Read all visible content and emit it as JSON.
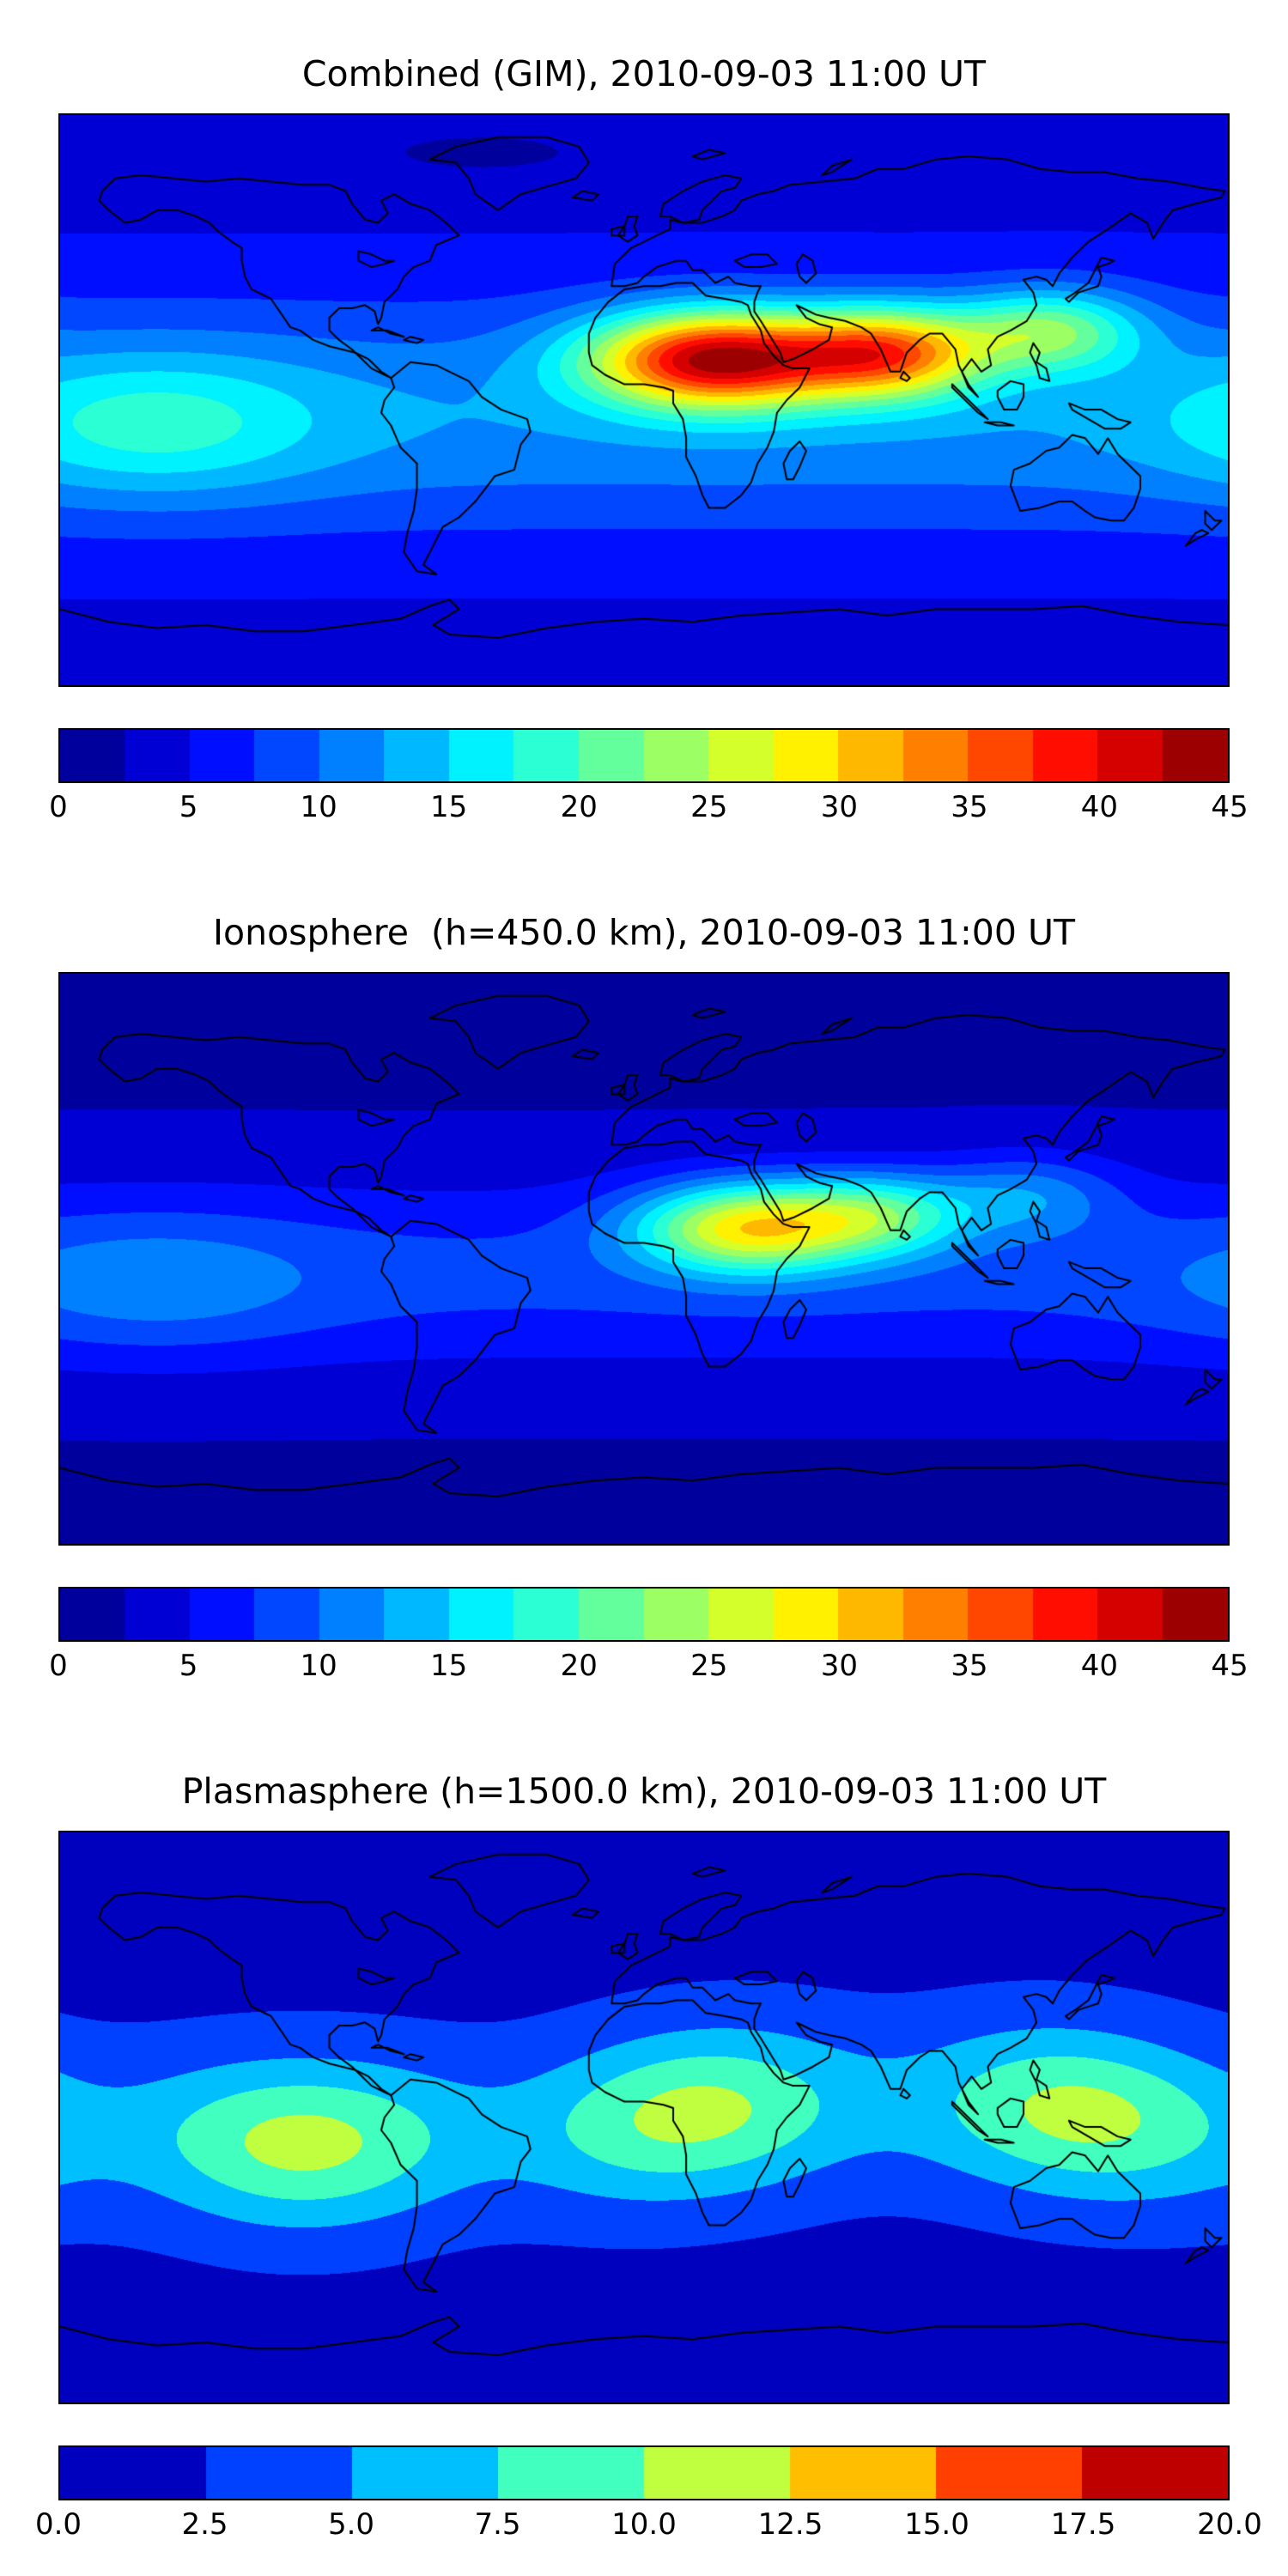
{
  "figure": {
    "background": "#ffffff",
    "coastline_color": "#000000"
  },
  "chart_data": [
    {
      "type": "heatmap",
      "title": "Combined (GIM), 2010-09-03 11:00 UT",
      "projection": "equirectangular",
      "lon_range": [
        -180,
        180
      ],
      "lat_range": [
        -90,
        90
      ],
      "grid": false,
      "colormap": "jet",
      "colorbar": {
        "min": 0,
        "max": 45,
        "step": 2.5,
        "n_segments": 18,
        "orientation": "horizontal",
        "tick_values": [
          0,
          5,
          10,
          15,
          20,
          25,
          30,
          35,
          40,
          45
        ],
        "tick_labels": [
          "0",
          "5",
          "10",
          "15",
          "20",
          "25",
          "30",
          "35",
          "40",
          "45"
        ]
      },
      "max_estimate": 45,
      "hotspot_note": "Peak ~43-45 over North Africa / Arabia, elongated east through India toward SE Asia; secondary ~15 patch in central equatorial Pacific; quiet high latitudes ~3-7",
      "field_model": {
        "base": 4.2,
        "lat_band": {
          "center": -5,
          "sigma": 38,
          "amp": 8
        },
        "blobs": [
          {
            "lon": 22,
            "lat": 13,
            "amp": 33,
            "slon": 38,
            "slat": 15
          },
          {
            "lon": 75,
            "lat": 15,
            "amp": 24,
            "slon": 30,
            "slat": 14
          },
          {
            "lon": 125,
            "lat": 22,
            "amp": 14,
            "slon": 28,
            "slat": 13
          },
          {
            "lon": -150,
            "lat": -8,
            "amp": 7,
            "slon": 50,
            "slat": 22
          },
          {
            "lon": -50,
            "lat": 78,
            "amp": -2.2,
            "slon": 50,
            "slat": 10
          }
        ]
      }
    },
    {
      "type": "heatmap",
      "title": "Ionosphere  (h=450.0 km), 2010-09-03 11:00 UT",
      "projection": "equirectangular",
      "lon_range": [
        -180,
        180
      ],
      "lat_range": [
        -90,
        90
      ],
      "grid": false,
      "colormap": "jet",
      "colorbar": {
        "min": 0,
        "max": 45,
        "step": 2.5,
        "n_segments": 18,
        "orientation": "horizontal",
        "tick_values": [
          0,
          5,
          10,
          15,
          20,
          25,
          30,
          35,
          40,
          45
        ],
        "tick_labels": [
          "0",
          "5",
          "10",
          "15",
          "20",
          "25",
          "30",
          "35",
          "40",
          "45"
        ]
      },
      "max_estimate": 31,
      "hotspot_note": "Peak ~30 (small orange core) over NE Africa / Arabia with yellow lobe to India; weak ~10 enhancement in equatorial Pacific; dark quiet high latitudes ~2",
      "field_model": {
        "base": 2.2,
        "lat_band": {
          "center": -5,
          "sigma": 30,
          "amp": 6
        },
        "blobs": [
          {
            "lon": 32,
            "lat": 10,
            "amp": 22,
            "slon": 34,
            "slat": 14
          },
          {
            "lon": 72,
            "lat": 14,
            "amp": 13,
            "slon": 28,
            "slat": 13
          },
          {
            "lon": 118,
            "lat": 20,
            "amp": 7,
            "slon": 28,
            "slat": 13
          },
          {
            "lon": -150,
            "lat": -8,
            "amp": 4,
            "slon": 50,
            "slat": 22
          }
        ]
      }
    },
    {
      "type": "heatmap",
      "title": "Plasmasphere (h=1500.0 km), 2010-09-03 11:00 UT",
      "projection": "equirectangular",
      "lon_range": [
        -180,
        180
      ],
      "lat_range": [
        -90,
        90
      ],
      "grid": false,
      "colormap": "jet",
      "colorbar": {
        "min": 0,
        "max": 20,
        "step": 2.5,
        "n_segments": 8,
        "orientation": "horizontal",
        "tick_values": [
          0,
          2.5,
          5,
          7.5,
          10,
          12.5,
          15,
          17.5,
          20
        ],
        "tick_labels": [
          "0.0",
          "2.5",
          "5.0",
          "7.5",
          "10.0",
          "12.5",
          "15.0",
          "17.5",
          "20.0"
        ]
      },
      "max_estimate": 11,
      "hotspot_note": "Broad low-latitude band ~5-11 with three yellow-green maxima (~10-11) near lon -105, 15 and 135; band dips south over eastern Pacific; dark blue <2.5 at high latitudes",
      "field_model": {
        "base": 1.8,
        "zonal_band": {
          "amp_mean": 6.8,
          "amp_mod": 2.4,
          "mod_order": 3,
          "mod_phase_deg": 15,
          "lat_mean": -2,
          "lat_mod": -6,
          "lat_mod_phase_deg": -105,
          "sigma": 26
        }
      }
    }
  ]
}
